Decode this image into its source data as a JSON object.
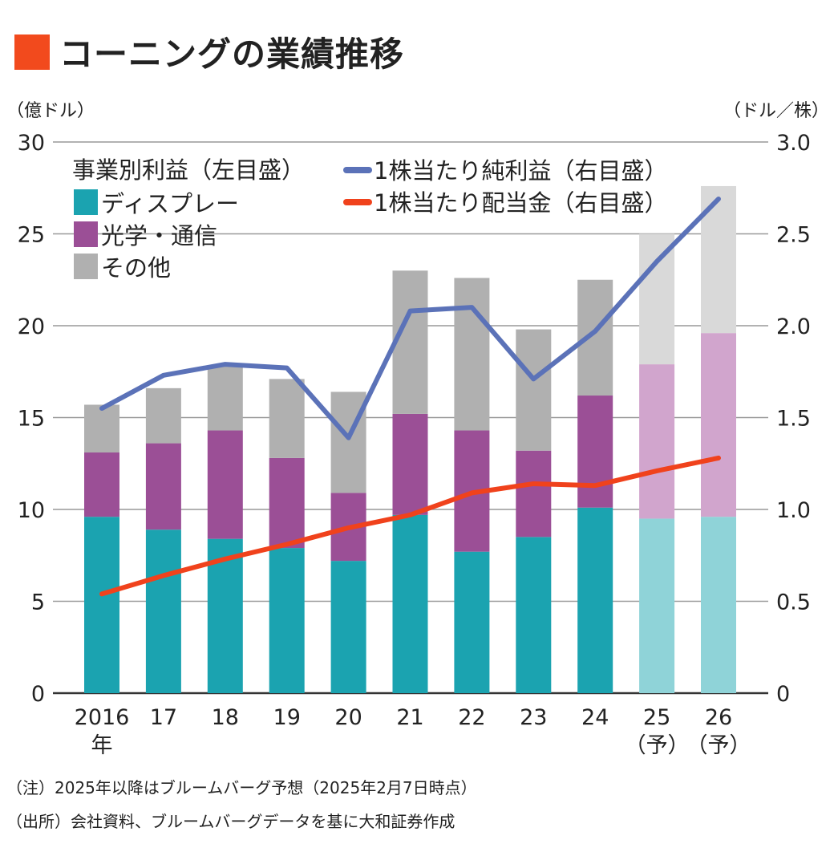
{
  "title": "コーニングの業績推移",
  "colors": {
    "title_mark": "#f24a1d",
    "display": "#1ba3b0",
    "optical": "#9b4f96",
    "other": "#b0b0b0",
    "display_forecast": "#8fd3d8",
    "optical_forecast": "#d1a5cd",
    "other_forecast": "#d9d9d9",
    "eps": "#5b72b8",
    "dividend": "#f0421c",
    "grid": "#999999"
  },
  "left_unit": "（億ドル）",
  "right_unit": "（ドル／株）",
  "notes": [
    "（注）2025年以降はブルームバーグ予想（2025年2月7日時点）",
    "（出所）会社資料、ブルームバーグデータを基に大和証券作成"
  ],
  "chart_data": {
    "type": "bar",
    "stacked": true,
    "categories": [
      "2016",
      "17",
      "18",
      "19",
      "20",
      "21",
      "22",
      "23",
      "24",
      "25",
      "26"
    ],
    "category_sublabels": [
      "年",
      "",
      "",
      "",
      "",
      "",
      "",
      "",
      "",
      "（予）",
      "（予）"
    ],
    "forecast": [
      false,
      false,
      false,
      false,
      false,
      false,
      false,
      false,
      false,
      true,
      true
    ],
    "legend_title": "事業別利益（左目盛）",
    "y_left": {
      "range": [
        0,
        30
      ],
      "ticks": [
        "0",
        "5",
        "10",
        "15",
        "20",
        "25",
        "30"
      ],
      "unit": "億ドル"
    },
    "y_right": {
      "range": [
        0,
        3.0
      ],
      "ticks": [
        "0",
        "0.5",
        "1.0",
        "1.5",
        "2.0",
        "2.5",
        "3.0"
      ],
      "unit": "ドル／株"
    },
    "grid": true,
    "legend_placement": "top-left",
    "series": [
      {
        "name": "ディスプレー",
        "axis": "left",
        "kind": "bar",
        "values": [
          9.6,
          8.9,
          8.4,
          7.9,
          7.2,
          9.7,
          7.7,
          8.5,
          10.1,
          9.5,
          9.6
        ]
      },
      {
        "name": "光学・通信",
        "axis": "left",
        "kind": "bar",
        "values": [
          3.5,
          4.7,
          5.9,
          4.9,
          3.7,
          5.5,
          6.6,
          4.7,
          6.1,
          8.4,
          10.0
        ]
      },
      {
        "name": "その他",
        "axis": "left",
        "kind": "bar",
        "values": [
          2.6,
          3.0,
          3.5,
          4.3,
          5.5,
          7.8,
          8.3,
          6.6,
          6.3,
          7.1,
          8.0
        ]
      },
      {
        "name": "1株当たり純利益（右目盛）",
        "axis": "right",
        "kind": "line",
        "values": [
          1.55,
          1.73,
          1.79,
          1.77,
          1.39,
          2.08,
          2.1,
          1.71,
          1.97,
          2.35,
          2.69
        ]
      },
      {
        "name": "1株当たり配当金（右目盛）",
        "axis": "right",
        "kind": "line",
        "values": [
          0.54,
          0.64,
          0.73,
          0.81,
          0.9,
          0.97,
          1.09,
          1.14,
          1.13,
          1.21,
          1.28
        ]
      }
    ]
  }
}
